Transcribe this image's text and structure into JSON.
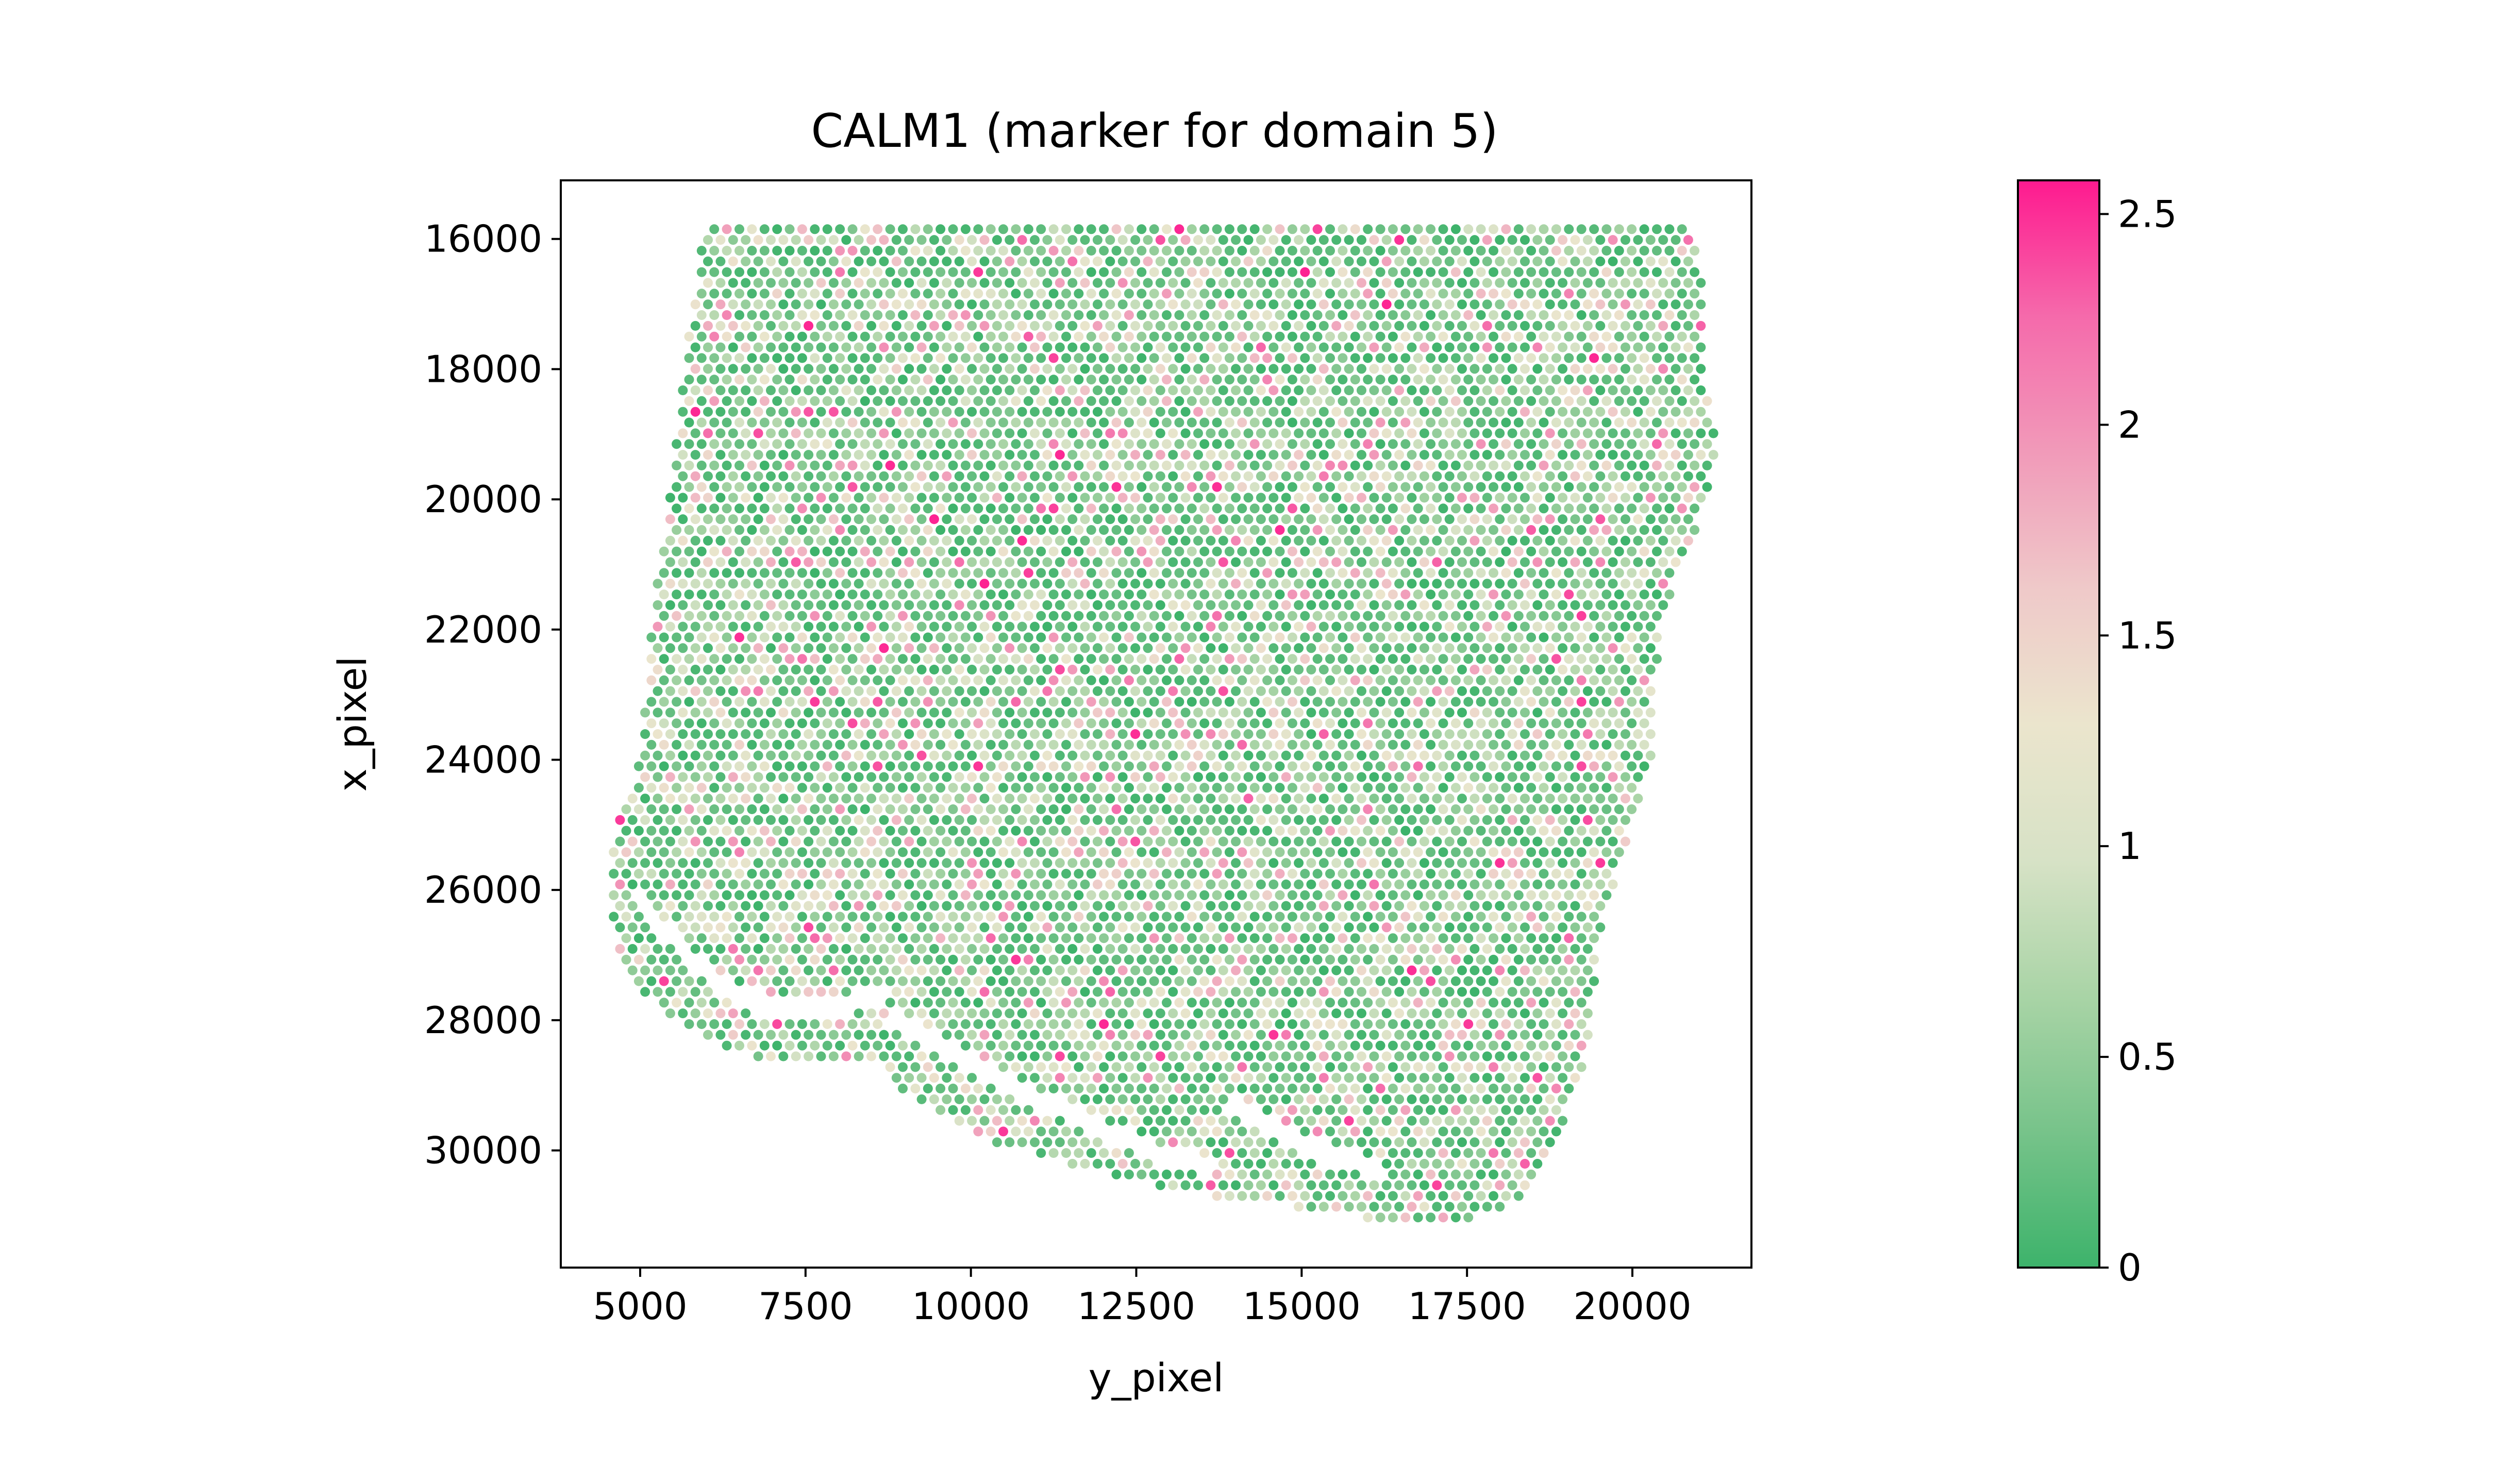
{
  "chart_data": {
    "type": "scatter",
    "title": "CALM1 (marker for domain 5)",
    "xlabel": "y_pixel",
    "ylabel": "x_pixel",
    "xlim": [
      3800,
      21800
    ],
    "ylim": [
      31800,
      15100
    ],
    "y_inverted": true,
    "xticks": [
      5000,
      7500,
      10000,
      12500,
      15000,
      17500,
      20000
    ],
    "yticks": [
      16000,
      18000,
      20000,
      22000,
      24000,
      26000,
      28000,
      30000
    ],
    "colorbar": {
      "range": [
        0,
        2.58
      ],
      "ticks": [
        0,
        0.5,
        1,
        1.5,
        2,
        2.5
      ],
      "colors": [
        "#3db36b",
        "#77c38a",
        "#a9d4a6",
        "#d7e2c6",
        "#ebe5cd",
        "#efc9c9",
        "#f19ab9",
        "#f56aab",
        "#fe1a8f"
      ]
    },
    "marker_color_low": "#3db36b",
    "marker_color_high": "#fe1a8f",
    "spot_grid": {
      "x_spacing": 190,
      "y_spacing": 165,
      "x_range": [
        4600,
        21300
      ],
      "y_range": [
        15850,
        31100
      ],
      "note_hidden": ""
    }
  }
}
